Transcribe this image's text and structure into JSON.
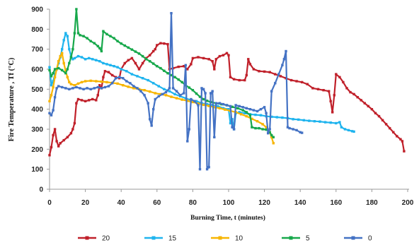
{
  "chart_data": {
    "type": "line",
    "xlabel": "Burning Time, t (minutes)",
    "ylabel": "Fire Temperature , Tf (°C)",
    "xlim": [
      0,
      200
    ],
    "ylim": [
      0,
      900
    ],
    "xticks": [
      0,
      20,
      40,
      60,
      80,
      100,
      120,
      140,
      160,
      180,
      200
    ],
    "yticks": [
      0,
      100,
      200,
      300,
      400,
      500,
      600,
      700,
      800,
      900
    ],
    "grid": false,
    "legend": "bottom",
    "series": [
      {
        "name": "20",
        "color": "#C0202A",
        "x": [
          0,
          1,
          2,
          3,
          4,
          5,
          6,
          8,
          10,
          12,
          13,
          14,
          15,
          16,
          18,
          20,
          22,
          24,
          26,
          27,
          28,
          29,
          30,
          31,
          33,
          35,
          37,
          39,
          40,
          42,
          44,
          46,
          48,
          50,
          52,
          54,
          56,
          58,
          59,
          60,
          62,
          64,
          66,
          67,
          69,
          72,
          75,
          77,
          79,
          80,
          83,
          86,
          89,
          91,
          92,
          93,
          95,
          97,
          99,
          100,
          101,
          103,
          106,
          109,
          110,
          111,
          112,
          114,
          117,
          120,
          123,
          126,
          129,
          132,
          135,
          138,
          141,
          144,
          147,
          150,
          153,
          156,
          157,
          158,
          159,
          160,
          162,
          164,
          166,
          168,
          170,
          172,
          174,
          176,
          178,
          180,
          182,
          184,
          186,
          188,
          190,
          192,
          194,
          196,
          197,
          198
        ],
        "y": [
          170,
          210,
          270,
          300,
          240,
          215,
          230,
          245,
          260,
          280,
          300,
          330,
          430,
          450,
          445,
          440,
          445,
          450,
          445,
          470,
          520,
          505,
          560,
          590,
          585,
          570,
          560,
          555,
          600,
          630,
          645,
          655,
          630,
          600,
          630,
          655,
          670,
          690,
          700,
          720,
          730,
          728,
          725,
          600,
          605,
          612,
          615,
          600,
          625,
          655,
          660,
          655,
          650,
          640,
          600,
          650,
          665,
          670,
          680,
          670,
          560,
          550,
          545,
          545,
          570,
          650,
          625,
          600,
          590,
          588,
          585,
          575,
          565,
          555,
          545,
          540,
          535,
          525,
          505,
          500,
          495,
          490,
          440,
          385,
          470,
          575,
          560,
          535,
          505,
          485,
          475,
          460,
          445,
          430,
          415,
          400,
          380,
          365,
          345,
          325,
          305,
          285,
          265,
          250,
          240,
          190
        ]
      },
      {
        "name": "15",
        "color": "#1FB4EE",
        "x": [
          0,
          1,
          2,
          3,
          4,
          5,
          6,
          7,
          8,
          9,
          10,
          11,
          12,
          13,
          14,
          16,
          18,
          20,
          22,
          24,
          26,
          28,
          30,
          32,
          34,
          36,
          38,
          40,
          43,
          46,
          49,
          52,
          55,
          58,
          61,
          64,
          67,
          70,
          73,
          76,
          79,
          82,
          85,
          88,
          91,
          94,
          97,
          100,
          101,
          102,
          103,
          104,
          106,
          109,
          112,
          115,
          118,
          121,
          124,
          127,
          130,
          133,
          136,
          139,
          142,
          145,
          148,
          151,
          154,
          157,
          160,
          162,
          163,
          165,
          167,
          169,
          170
        ],
        "y": [
          610,
          520,
          540,
          575,
          600,
          630,
          660,
          700,
          745,
          780,
          765,
          700,
          665,
          650,
          655,
          665,
          660,
          650,
          655,
          650,
          645,
          640,
          630,
          625,
          620,
          615,
          610,
          600,
          590,
          575,
          565,
          555,
          545,
          530,
          515,
          500,
          490,
          475,
          465,
          455,
          445,
          440,
          430,
          425,
          420,
          415,
          405,
          400,
          330,
          350,
          300,
          380,
          385,
          380,
          375,
          372,
          370,
          365,
          362,
          360,
          358,
          355,
          350,
          348,
          345,
          342,
          340,
          338,
          335,
          333,
          330,
          335,
          310,
          300,
          295,
          290,
          288
        ]
      },
      {
        "name": "10",
        "color": "#F7B500",
        "x": [
          0,
          1,
          2,
          3,
          4,
          5,
          6,
          7,
          8,
          9,
          10,
          11,
          12,
          14,
          16,
          18,
          20,
          23,
          26,
          29,
          32,
          35,
          38,
          41,
          44,
          47,
          50,
          53,
          56,
          59,
          62,
          65,
          68,
          71,
          74,
          77,
          80,
          83,
          86,
          89,
          92,
          95,
          98,
          101,
          104,
          107,
          110,
          113,
          116,
          119,
          121,
          123,
          124,
          125
        ],
        "y": [
          440,
          470,
          510,
          560,
          600,
          640,
          665,
          680,
          630,
          590,
          560,
          535,
          525,
          520,
          528,
          535,
          540,
          542,
          540,
          538,
          535,
          532,
          528,
          520,
          512,
          505,
          500,
          495,
          488,
          480,
          475,
          470,
          462,
          455,
          448,
          442,
          436,
          428,
          422,
          416,
          410,
          405,
          398,
          392,
          385,
          375,
          365,
          352,
          340,
          325,
          310,
          285,
          260,
          230
        ]
      },
      {
        "name": "5",
        "color": "#17A84B",
        "x": [
          0,
          1,
          2,
          3,
          5,
          7,
          9,
          10,
          11,
          12,
          13,
          14,
          15,
          16,
          17,
          19,
          21,
          23,
          25,
          27,
          28,
          29,
          30,
          32,
          34,
          36,
          38,
          40,
          42,
          44,
          46,
          48,
          50,
          52,
          54,
          56,
          58,
          60,
          62,
          64,
          66,
          68,
          70,
          72,
          74,
          76,
          78,
          80,
          82,
          84,
          86,
          88,
          90,
          93,
          96,
          99,
          102,
          105,
          108,
          110,
          112,
          113,
          115,
          117,
          119,
          121,
          123,
          124,
          125
        ],
        "y": [
          595,
          565,
          580,
          600,
          605,
          595,
          580,
          600,
          630,
          660,
          700,
          780,
          900,
          780,
          770,
          765,
          755,
          740,
          730,
          715,
          705,
          690,
          790,
          775,
          765,
          755,
          740,
          728,
          718,
          708,
          698,
          688,
          678,
          665,
          650,
          640,
          628,
          615,
          605,
          592,
          580,
          570,
          560,
          548,
          535,
          520,
          508,
          495,
          478,
          462,
          450,
          442,
          436,
          430,
          425,
          420,
          412,
          405,
          395,
          385,
          370,
          310,
          305,
          305,
          300,
          298,
          285,
          270,
          260
        ]
      },
      {
        "name": "0",
        "color": "#4472C4",
        "x": [
          0,
          1,
          2,
          3,
          4,
          5,
          7,
          9,
          11,
          13,
          15,
          17,
          19,
          21,
          23,
          25,
          27,
          29,
          31,
          33,
          35,
          37,
          39,
          41,
          43,
          45,
          47,
          49,
          51,
          53,
          55,
          56,
          57,
          58,
          59,
          61,
          63,
          65,
          67,
          68,
          69,
          71,
          73,
          75,
          76,
          77,
          78,
          79,
          81,
          83,
          84,
          85,
          86,
          87,
          88,
          89,
          90,
          91,
          92,
          93,
          95,
          97,
          99,
          101,
          102,
          103,
          104,
          106,
          108,
          110,
          112,
          114,
          116,
          118,
          120,
          121,
          122,
          123,
          124,
          126,
          128,
          130,
          131,
          132,
          133,
          134,
          136,
          138,
          140,
          141
        ],
        "y": [
          380,
          370,
          395,
          460,
          505,
          515,
          510,
          505,
          500,
          505,
          510,
          505,
          500,
          505,
          500,
          505,
          510,
          505,
          510,
          515,
          530,
          555,
          560,
          555,
          540,
          530,
          515,
          505,
          490,
          470,
          430,
          350,
          318,
          400,
          450,
          465,
          475,
          485,
          505,
          880,
          505,
          490,
          470,
          480,
          620,
          240,
          300,
          450,
          440,
          420,
          100,
          505,
          500,
          480,
          100,
          110,
          480,
          490,
          260,
          430,
          430,
          425,
          420,
          415,
          310,
          300,
          420,
          415,
          410,
          405,
          400,
          395,
          390,
          400,
          410,
          380,
          280,
          300,
          490,
          530,
          575,
          620,
          650,
          690,
          310,
          305,
          300,
          295,
          285,
          282
        ]
      }
    ]
  }
}
